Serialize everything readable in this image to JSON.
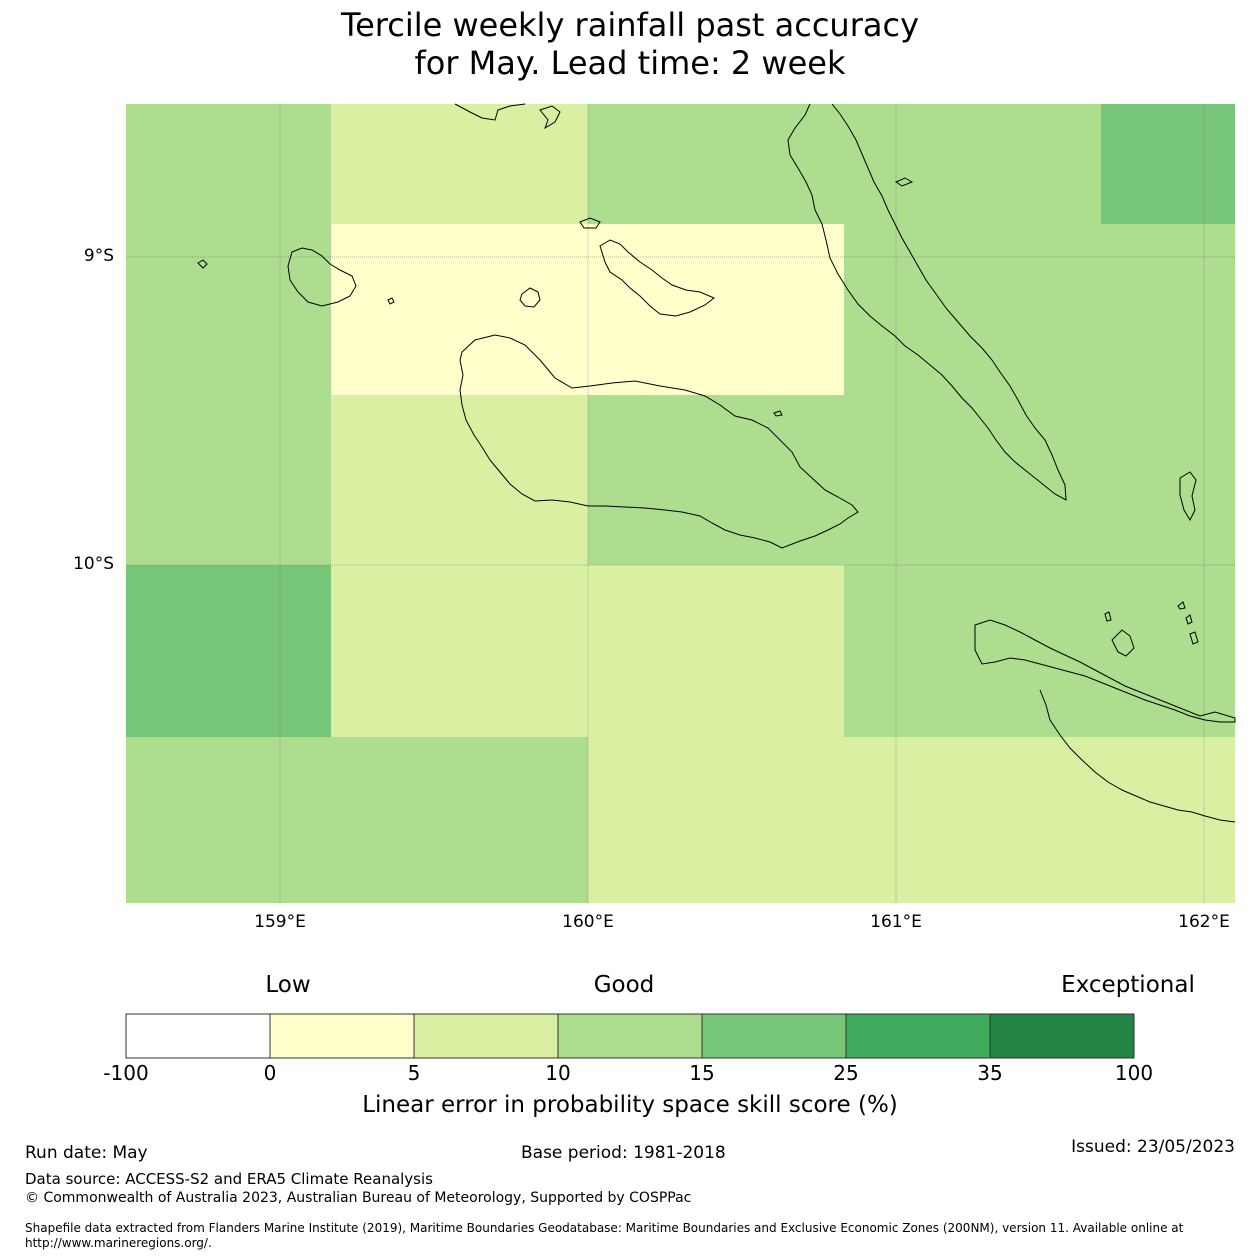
{
  "title": {
    "line1": "Tercile weekly rainfall past accuracy",
    "line2": "for May. Lead time: 2 week"
  },
  "map": {
    "lon_range": [
      158.5,
      162.1
    ],
    "lat_range": [
      -8.5,
      -11.1
    ],
    "lat_labels": [
      "9°S",
      "10°S"
    ],
    "lon_labels": [
      "159°E",
      "160°E",
      "161°E",
      "162°E"
    ],
    "cells": [
      {
        "lon": [
          158.5,
          159.17
        ],
        "lat": [
          -8.5,
          -10.0
        ],
        "value": "10-15"
      },
      {
        "lon": [
          159.17,
          160.0
        ],
        "lat": [
          -8.5,
          -8.89
        ],
        "value": "5-10"
      },
      {
        "lon": [
          159.17,
          160.83
        ],
        "lat": [
          -8.89,
          -9.44
        ],
        "value": "0-5"
      },
      {
        "lon": [
          160.0,
          161.67
        ],
        "lat": [
          -8.5,
          -8.89
        ],
        "value": "10-15"
      },
      {
        "lon": [
          161.67,
          162.1
        ],
        "lat": [
          -8.5,
          -8.89
        ],
        "value": "15-25"
      },
      {
        "lon": [
          160.83,
          162.1
        ],
        "lat": [
          -8.89,
          -10.56
        ],
        "value": "10-15"
      },
      {
        "lon": [
          159.17,
          160.0
        ],
        "lat": [
          -9.44,
          -10.0
        ],
        "value": "5-10"
      },
      {
        "lon": [
          160.0,
          160.83
        ],
        "lat": [
          -9.44,
          -10.0
        ],
        "value": "10-15"
      },
      {
        "lon": [
          158.5,
          159.17
        ],
        "lat": [
          -10.0,
          -10.56
        ],
        "value": "15-25"
      },
      {
        "lon": [
          159.17,
          160.83
        ],
        "lat": [
          -10.0,
          -10.56
        ],
        "value": "5-10"
      },
      {
        "lon": [
          158.5,
          160.0
        ],
        "lat": [
          -10.56,
          -11.1
        ],
        "value": "10-15"
      },
      {
        "lon": [
          160.0,
          162.1
        ],
        "lat": [
          -10.56,
          -11.1
        ],
        "value": "5-10"
      }
    ]
  },
  "colorbar": {
    "category_words": [
      "Low",
      "Good",
      "Exceptional"
    ],
    "ticks": [
      "-100",
      "0",
      "5",
      "10",
      "15",
      "25",
      "35",
      "100"
    ],
    "colors": [
      "#ffffff",
      "#ffffcc",
      "#d9f0a3",
      "#addd8e",
      "#78c679",
      "#41ab5d",
      "#238443"
    ],
    "title": "Linear error in probability space skill score (%)"
  },
  "footer": {
    "run_date": "Run date: May",
    "base_period": "Base period: 1981-2018",
    "issued": "Issued: 23/05/2023",
    "data_source": "Data source: ACCESS-S2 and ERA5 Climate Reanalysis",
    "copyright": "© Commonwealth of Australia 2023, Australian Bureau of Meteorology, Supported by COSPPac",
    "shapefile_note": "Shapefile data extracted from Flanders Marine Institute (2019), Maritime Boundaries Geodatabase: Maritime Boundaries and Exclusive Economic Zones (200NM), version 11. Available online at http://www.marineregions.org/."
  }
}
